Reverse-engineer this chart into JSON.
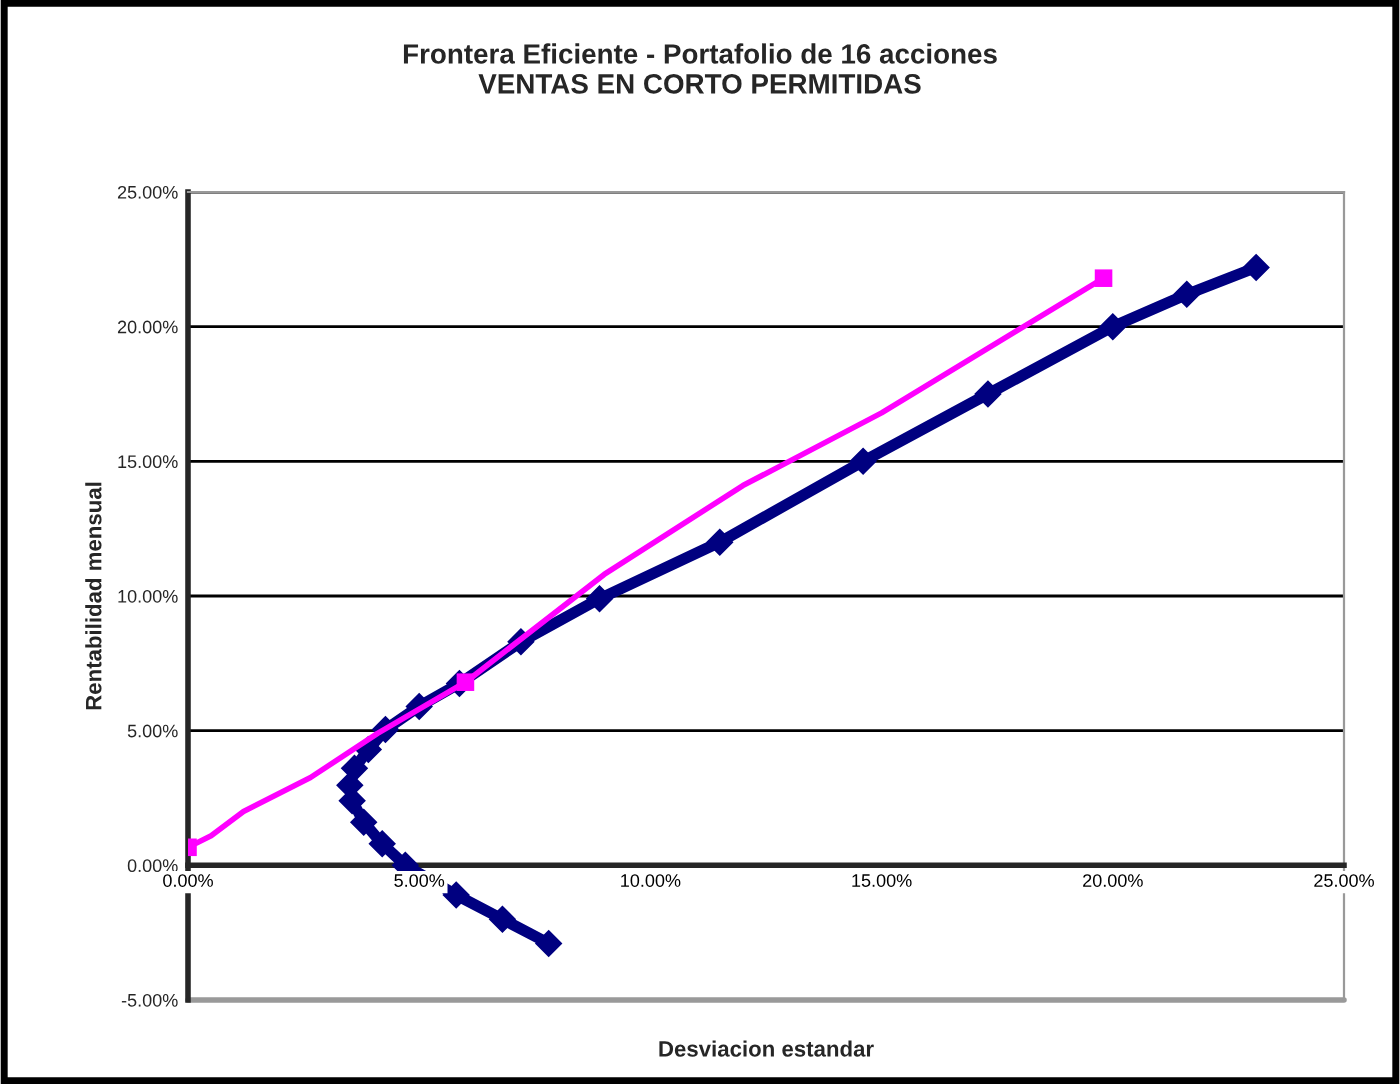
{
  "chart_data": {
    "type": "line",
    "title": "Frontera Eficiente - Portafolio de 16 acciones\nVENTAS EN CORTO PERMITIDAS",
    "xlabel": "Desviacion estandar",
    "ylabel": "Rentabilidad mensual",
    "series": [
      {
        "color": "#000080",
        "marker": "diamond",
        "x": [
          7.8,
          6.8,
          5.8,
          4.7,
          4.2,
          3.8,
          3.55,
          3.5,
          3.6,
          3.9,
          4.27,
          5.0,
          5.87,
          7.2,
          8.9,
          11.5,
          14.6,
          17.3,
          20.0,
          21.6,
          23.1
        ],
        "values": [
          -2.9,
          -2.0,
          -1.1,
          0.0,
          0.8,
          1.6,
          2.4,
          2.97,
          3.6,
          4.3,
          5.04,
          5.9,
          6.75,
          8.3,
          9.9,
          12.0,
          15.0,
          17.5,
          20.0,
          21.2,
          22.2
        ]
      },
      {
        "color": "#ff00ff",
        "marker": "none",
        "x": [
          0.0,
          0.5,
          1.2,
          2.65,
          4.1,
          6.0,
          9.0,
          12.0,
          15.0,
          19.8
        ],
        "values": [
          0.67,
          1.1,
          2.0,
          3.26,
          4.9,
          6.8,
          10.8,
          14.1,
          16.8,
          21.8
        ]
      },
      {
        "type": "scatter",
        "color": "#ff00ff",
        "marker": "square",
        "x": [
          0.0,
          6.0,
          19.8
        ],
        "values": [
          0.67,
          6.8,
          21.8
        ]
      }
    ],
    "xlim": [
      0,
      25
    ],
    "ylim": [
      -5,
      25
    ],
    "xticks": [
      {
        "value": 0,
        "label": "0.00%"
      },
      {
        "value": 5,
        "label": "5.00%"
      },
      {
        "value": 10,
        "label": "10.00%"
      },
      {
        "value": 15,
        "label": "15.00%"
      },
      {
        "value": 20,
        "label": "20.00%"
      },
      {
        "value": 25,
        "label": "25.00%"
      }
    ],
    "yticks": [
      {
        "value": -5,
        "label": "-5.00%"
      },
      {
        "value": 0,
        "label": "0.00%"
      },
      {
        "value": 5,
        "label": "5.00%"
      },
      {
        "value": 10,
        "label": "10.00%"
      },
      {
        "value": 15,
        "label": "15.00%"
      },
      {
        "value": 20,
        "label": "20.00%"
      },
      {
        "value": 25,
        "label": "25.00%"
      }
    ],
    "grid": "y",
    "legend": false
  }
}
